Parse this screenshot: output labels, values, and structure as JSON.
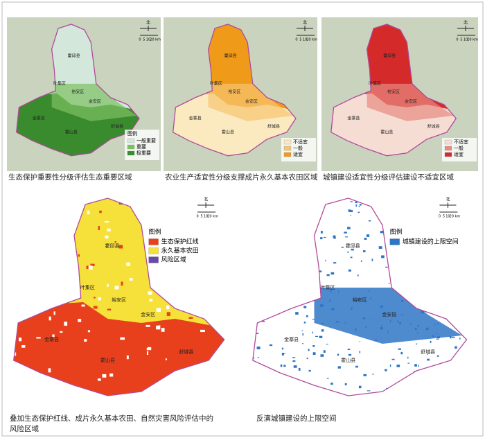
{
  "panels": [
    {
      "caption": "生态保护重要性分级评估生态重要区域",
      "legend": {
        "title": "图例",
        "items": [
          {
            "label": "一般重要",
            "color": "#d3e8da"
          },
          {
            "label": "重要",
            "color": "#7cc062"
          },
          {
            "label": "极重要",
            "color": "#3a8a2e"
          }
        ]
      }
    },
    {
      "caption": "农业生产适宜性分级支撑成片永久基本农田区域",
      "legend": {
        "items": [
          {
            "label": "不适宜",
            "color": "#fbe9c0"
          },
          {
            "label": "一般",
            "color": "#f7c470"
          },
          {
            "label": "适宜",
            "color": "#f09a1a"
          }
        ]
      }
    },
    {
      "caption": "城镇建设适宜性分级评估建设不适宜区域",
      "legend": {
        "items": [
          {
            "label": "不适宜",
            "color": "#f6ddd4"
          },
          {
            "label": "一般",
            "color": "#e88a80"
          },
          {
            "label": "适宜",
            "color": "#d42a2a"
          }
        ]
      }
    },
    {
      "caption": "叠加生态保护红线、成片永久基本农田、自然灾害风险评估中的风险区域",
      "legend": {
        "title": "图例",
        "items": [
          {
            "label": "生态保护红线",
            "color": "#e8401c"
          },
          {
            "label": "永久基本农田",
            "color": "#f6e03a"
          },
          {
            "label": "风险区域",
            "color": "#6a4aa8"
          }
        ]
      }
    },
    {
      "caption": "反演城镇建设的上限空间",
      "legend": {
        "title": "图例",
        "items": [
          {
            "label": "城镇建设的上限空间",
            "color": "#2f75c6"
          }
        ]
      }
    }
  ],
  "districts": [
    "霍邱县",
    "叶集区",
    "裕安区",
    "金安区",
    "金寨县",
    "霍山县",
    "舒城县"
  ],
  "north_label": "北",
  "scale_labels": [
    "0",
    "5",
    "10",
    "20 km"
  ]
}
